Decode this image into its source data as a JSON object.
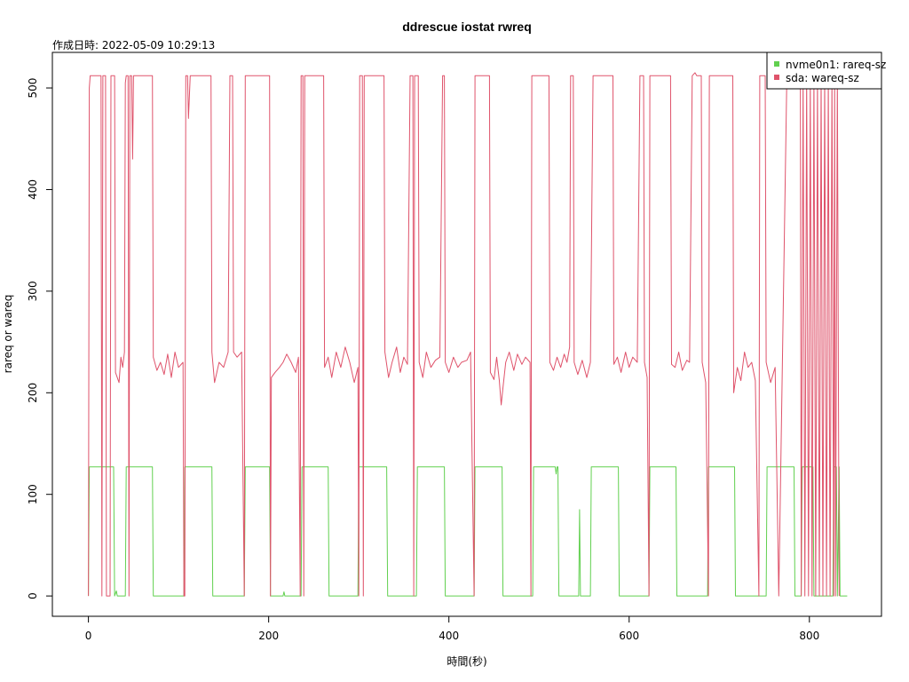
{
  "chart_data": {
    "type": "line",
    "title": "ddrescue iostat rwreq",
    "subtitle": "作成日時: 2022-05-09 10:29:13",
    "xlabel": "時間(秒)",
    "ylabel": "rareq or wareq",
    "xlim": [
      -40,
      880
    ],
    "ylim": [
      -20,
      535
    ],
    "x_ticks": [
      0,
      200,
      400,
      600,
      800
    ],
    "y_ticks": [
      0,
      100,
      200,
      300,
      400,
      500
    ],
    "legend_position": "top-right",
    "series": [
      {
        "name": "nvme0n1: rareq-sz",
        "color": "#61d04f",
        "points": [
          [
            0,
            0
          ],
          [
            1,
            127
          ],
          [
            28,
            127
          ],
          [
            29,
            0
          ],
          [
            31,
            5
          ],
          [
            32,
            0
          ],
          [
            41,
            0
          ],
          [
            42,
            127
          ],
          [
            71,
            127
          ],
          [
            72,
            0
          ],
          [
            106,
            0
          ],
          [
            107,
            127
          ],
          [
            137,
            127
          ],
          [
            138,
            0
          ],
          [
            173,
            0
          ],
          [
            174,
            127
          ],
          [
            201,
            127
          ],
          [
            202,
            0
          ],
          [
            216,
            0
          ],
          [
            217,
            4
          ],
          [
            218,
            0
          ],
          [
            236,
            0
          ],
          [
            237,
            127
          ],
          [
            266,
            127
          ],
          [
            267,
            0
          ],
          [
            299,
            0
          ],
          [
            300,
            127
          ],
          [
            331,
            127
          ],
          [
            332,
            0
          ],
          [
            364,
            0
          ],
          [
            365,
            127
          ],
          [
            395,
            127
          ],
          [
            396,
            0
          ],
          [
            428,
            0
          ],
          [
            429,
            127
          ],
          [
            459,
            127
          ],
          [
            460,
            0
          ],
          [
            493,
            0
          ],
          [
            494,
            127
          ],
          [
            518,
            127
          ],
          [
            519,
            120
          ],
          [
            520,
            127
          ],
          [
            521,
            127
          ],
          [
            522,
            0
          ],
          [
            544,
            0
          ],
          [
            545,
            85
          ],
          [
            546,
            0
          ],
          [
            557,
            0
          ],
          [
            558,
            127
          ],
          [
            588,
            127
          ],
          [
            589,
            0
          ],
          [
            622,
            0
          ],
          [
            623,
            127
          ],
          [
            652,
            127
          ],
          [
            653,
            0
          ],
          [
            687,
            0
          ],
          [
            688,
            127
          ],
          [
            717,
            127
          ],
          [
            718,
            0
          ],
          [
            752,
            0
          ],
          [
            753,
            127
          ],
          [
            783,
            127
          ],
          [
            784,
            0
          ],
          [
            791,
            0
          ],
          [
            792,
            127
          ],
          [
            804,
            127
          ],
          [
            805,
            0
          ],
          [
            826,
            0
          ],
          [
            827,
            127
          ],
          [
            830,
            127
          ],
          [
            831,
            0
          ],
          [
            833,
            127
          ],
          [
            834,
            0
          ],
          [
            842,
            0
          ]
        ]
      },
      {
        "name": "sda: wareq-sz",
        "color": "#df536b",
        "points": [
          [
            0,
            0
          ],
          [
            1,
            500
          ],
          [
            2,
            512
          ],
          [
            14,
            512
          ],
          [
            15,
            0
          ],
          [
            16,
            512
          ],
          [
            19,
            512
          ],
          [
            20,
            0
          ],
          [
            24,
            0
          ],
          [
            25,
            512
          ],
          [
            29,
            512
          ],
          [
            30,
            220
          ],
          [
            34,
            210
          ],
          [
            36,
            235
          ],
          [
            38,
            225
          ],
          [
            40,
            240
          ],
          [
            41,
            505
          ],
          [
            42,
            512
          ],
          [
            44,
            512
          ],
          [
            45,
            0
          ],
          [
            46,
            512
          ],
          [
            48,
            512
          ],
          [
            49,
            430
          ],
          [
            50,
            512
          ],
          [
            71,
            512
          ],
          [
            72,
            235
          ],
          [
            76,
            222
          ],
          [
            80,
            230
          ],
          [
            84,
            218
          ],
          [
            88,
            238
          ],
          [
            92,
            215
          ],
          [
            96,
            240
          ],
          [
            100,
            225
          ],
          [
            105,
            230
          ],
          [
            106,
            0
          ],
          [
            107,
            0
          ],
          [
            108,
            512
          ],
          [
            110,
            512
          ],
          [
            111,
            470
          ],
          [
            113,
            512
          ],
          [
            136,
            512
          ],
          [
            137,
            240
          ],
          [
            140,
            210
          ],
          [
            145,
            230
          ],
          [
            150,
            225
          ],
          [
            155,
            240
          ],
          [
            157,
            512
          ],
          [
            160,
            512
          ],
          [
            161,
            240
          ],
          [
            165,
            235
          ],
          [
            170,
            240
          ],
          [
            173,
            0
          ],
          [
            174,
            512
          ],
          [
            201,
            512
          ],
          [
            202,
            0
          ],
          [
            203,
            215
          ],
          [
            207,
            220
          ],
          [
            212,
            225
          ],
          [
            216,
            230
          ],
          [
            220,
            238
          ],
          [
            225,
            230
          ],
          [
            230,
            220
          ],
          [
            233,
            235
          ],
          [
            235,
            0
          ],
          [
            236,
            512
          ],
          [
            238,
            512
          ],
          [
            239,
            0
          ],
          [
            240,
            512
          ],
          [
            261,
            512
          ],
          [
            262,
            225
          ],
          [
            266,
            235
          ],
          [
            270,
            215
          ],
          [
            275,
            240
          ],
          [
            280,
            225
          ],
          [
            285,
            245
          ],
          [
            290,
            230
          ],
          [
            295,
            210
          ],
          [
            299,
            225
          ],
          [
            300,
            0
          ],
          [
            301,
            512
          ],
          [
            304,
            512
          ],
          [
            305,
            0
          ],
          [
            306,
            512
          ],
          [
            328,
            512
          ],
          [
            329,
            240
          ],
          [
            333,
            215
          ],
          [
            337,
            230
          ],
          [
            342,
            245
          ],
          [
            346,
            220
          ],
          [
            350,
            235
          ],
          [
            354,
            228
          ],
          [
            357,
            512
          ],
          [
            360,
            512
          ],
          [
            361,
            0
          ],
          [
            362,
            512
          ],
          [
            366,
            512
          ],
          [
            367,
            230
          ],
          [
            371,
            215
          ],
          [
            375,
            240
          ],
          [
            380,
            225
          ],
          [
            385,
            232
          ],
          [
            390,
            235
          ],
          [
            393,
            512
          ],
          [
            395,
            512
          ],
          [
            396,
            230
          ],
          [
            400,
            220
          ],
          [
            405,
            235
          ],
          [
            410,
            225
          ],
          [
            414,
            230
          ],
          [
            420,
            232
          ],
          [
            424,
            240
          ],
          [
            428,
            0
          ],
          [
            429,
            512
          ],
          [
            445,
            512
          ],
          [
            446,
            220
          ],
          [
            450,
            213
          ],
          [
            453,
            235
          ],
          [
            456,
            212
          ],
          [
            458,
            188
          ],
          [
            460,
            205
          ],
          [
            463,
            230
          ],
          [
            467,
            240
          ],
          [
            472,
            222
          ],
          [
            476,
            238
          ],
          [
            481,
            228
          ],
          [
            485,
            235
          ],
          [
            490,
            230
          ],
          [
            491,
            0
          ],
          [
            492,
            512
          ],
          [
            511,
            512
          ],
          [
            512,
            230
          ],
          [
            516,
            222
          ],
          [
            520,
            235
          ],
          [
            524,
            225
          ],
          [
            528,
            238
          ],
          [
            531,
            230
          ],
          [
            534,
            245
          ],
          [
            535,
            512
          ],
          [
            538,
            512
          ],
          [
            539,
            230
          ],
          [
            543,
            218
          ],
          [
            548,
            232
          ],
          [
            553,
            215
          ],
          [
            557,
            230
          ],
          [
            560,
            512
          ],
          [
            582,
            512
          ],
          [
            583,
            228
          ],
          [
            587,
            235
          ],
          [
            591,
            220
          ],
          [
            596,
            240
          ],
          [
            600,
            225
          ],
          [
            604,
            235
          ],
          [
            609,
            230
          ],
          [
            612,
            512
          ],
          [
            616,
            512
          ],
          [
            617,
            230
          ],
          [
            620,
            215
          ],
          [
            622,
            0
          ],
          [
            623,
            512
          ],
          [
            646,
            512
          ],
          [
            647,
            228
          ],
          [
            651,
            225
          ],
          [
            655,
            240
          ],
          [
            659,
            222
          ],
          [
            664,
            232
          ],
          [
            667,
            230
          ],
          [
            670,
            512
          ],
          [
            673,
            515
          ],
          [
            675,
            512
          ],
          [
            680,
            512
          ],
          [
            681,
            230
          ],
          [
            685,
            210
          ],
          [
            688,
            0
          ],
          [
            689,
            512
          ],
          [
            715,
            512
          ],
          [
            716,
            200
          ],
          [
            720,
            225
          ],
          [
            724,
            212
          ],
          [
            728,
            240
          ],
          [
            732,
            225
          ],
          [
            736,
            230
          ],
          [
            740,
            212
          ],
          [
            744,
            0
          ],
          [
            745,
            512
          ],
          [
            751,
            512
          ],
          [
            752,
            230
          ],
          [
            757,
            210
          ],
          [
            762,
            225
          ],
          [
            766,
            0
          ],
          [
            775,
            512
          ],
          [
            790,
            512
          ],
          [
            791,
            0
          ],
          [
            793,
            512
          ],
          [
            795,
            0
          ],
          [
            797,
            512
          ],
          [
            799,
            0
          ],
          [
            801,
            512
          ],
          [
            803,
            0
          ],
          [
            805,
            512
          ],
          [
            807,
            0
          ],
          [
            809,
            512
          ],
          [
            811,
            0
          ],
          [
            813,
            512
          ],
          [
            815,
            0
          ],
          [
            817,
            512
          ],
          [
            819,
            0
          ],
          [
            821,
            512
          ],
          [
            823,
            0
          ],
          [
            825,
            512
          ],
          [
            827,
            0
          ],
          [
            828,
            512
          ],
          [
            829,
            0
          ],
          [
            831,
            512
          ],
          [
            833,
            0
          ]
        ]
      }
    ]
  }
}
